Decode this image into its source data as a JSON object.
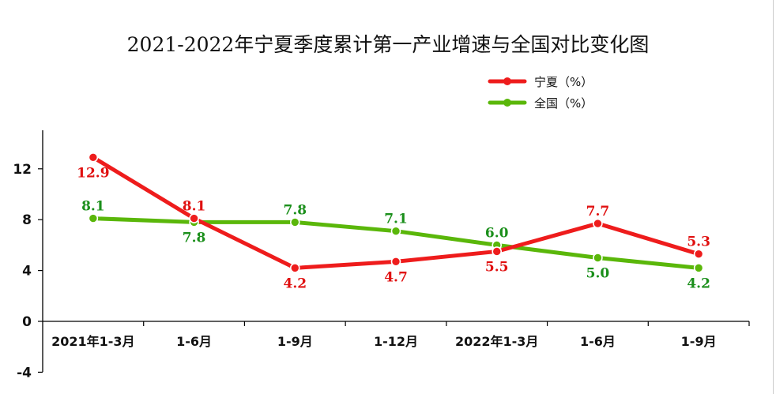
{
  "chart_data": {
    "type": "line",
    "title": "2021-2022年宁夏季度累计第一产业增速与全国对比变化图",
    "categories": [
      "2021年1-3月",
      "1-6月",
      "1-9月",
      "1-12月",
      "2022年1-3月",
      "1-6月",
      "1-9月"
    ],
    "series": [
      {
        "name": "宁夏（%）",
        "color": "#ee1c1c",
        "values": [
          12.9,
          8.1,
          4.2,
          4.7,
          5.5,
          7.7,
          5.3
        ]
      },
      {
        "name": "全国（%）",
        "color": "#5ab70a",
        "values": [
          8.1,
          7.8,
          7.8,
          7.1,
          6.0,
          5.0,
          4.2
        ]
      }
    ],
    "value_label_colors": {
      "宁夏（%）": "#e01010",
      "全国（%）": "#1b8f1b"
    },
    "yticks": [
      -4,
      0,
      4,
      8,
      12
    ],
    "ylim": [
      -4,
      14
    ],
    "xlabel": "",
    "ylabel": "",
    "grid": false,
    "legend": "top-right"
  }
}
